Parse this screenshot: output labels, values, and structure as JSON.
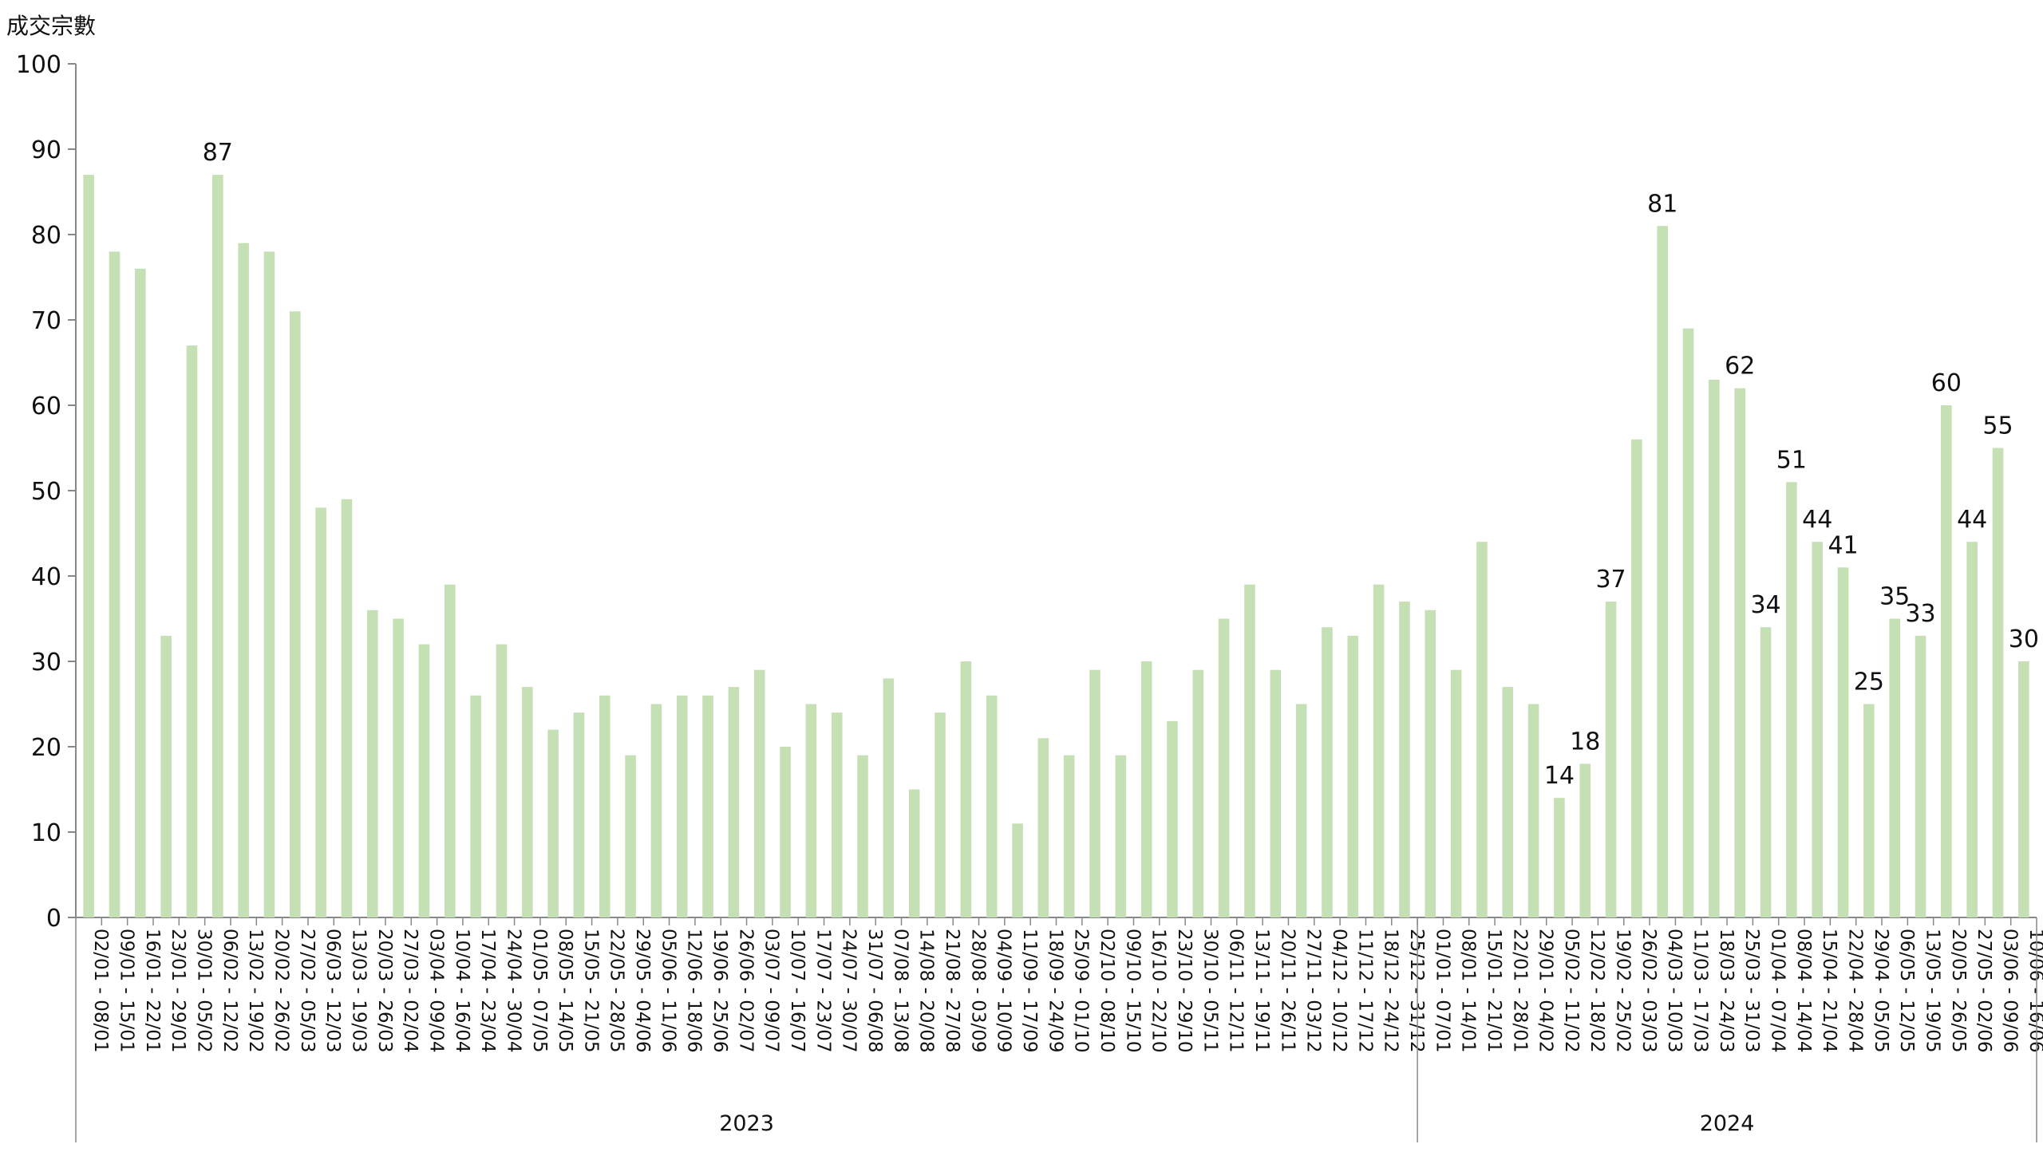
{
  "chart_data": {
    "type": "bar",
    "ylabel": "成交宗數",
    "ylim": [
      0,
      100
    ],
    "yticks": [
      0,
      10,
      20,
      30,
      40,
      50,
      60,
      70,
      80,
      90,
      100
    ],
    "bar_color": "#c5e0b4",
    "axis_color": "#888888",
    "categories": [
      "02/01 - 08/01",
      "09/01 - 15/01",
      "16/01 - 22/01",
      "23/01 - 29/01",
      "30/01 - 05/02",
      "06/02 - 12/02",
      "13/02 - 19/02",
      "20/02 - 26/02",
      "27/02 - 05/03",
      "06/03 - 12/03",
      "13/03 - 19/03",
      "20/03 - 26/03",
      "27/03 - 02/04",
      "03/04 - 09/04",
      "10/04 - 16/04",
      "17/04 - 23/04",
      "24/04 - 30/04",
      "01/05 - 07/05",
      "08/05 - 14/05",
      "15/05 - 21/05",
      "22/05 - 28/05",
      "29/05 - 04/06",
      "05/06 - 11/06",
      "12/06 - 18/06",
      "19/06 - 25/06",
      "26/06 - 02/07",
      "03/07 - 09/07",
      "10/07 - 16/07",
      "17/07 - 23/07",
      "24/07 - 30/07",
      "31/07 - 06/08",
      "07/08 - 13/08",
      "14/08 - 20/08",
      "21/08 - 27/08",
      "28/08 - 03/09",
      "04/09 - 10/09",
      "11/09 - 17/09",
      "18/09 - 24/09",
      "25/09 - 01/10",
      "02/10 - 08/10",
      "09/10 - 15/10",
      "16/10 - 22/10",
      "23/10 - 29/10",
      "30/10 - 05/11",
      "06/11 - 12/11",
      "13/11 - 19/11",
      "20/11 - 26/11",
      "27/11 - 03/12",
      "04/12 - 10/12",
      "11/12 - 17/12",
      "18/12 - 24/12",
      "25/12 - 31/12",
      "01/01 - 07/01",
      "08/01 - 14/01",
      "15/01 - 21/01",
      "22/01 - 28/01",
      "29/01 - 04/02",
      "05/02 - 11/02",
      "12/02 - 18/02",
      "19/02 - 25/02",
      "26/02 - 03/03",
      "04/03 - 10/03",
      "11/03 - 17/03",
      "18/03 - 24/03",
      "25/03 - 31/03",
      "01/04 - 07/04",
      "08/04 - 14/04",
      "15/04 - 21/04",
      "22/04 - 28/04",
      "29/04 - 05/05",
      "06/05 - 12/05",
      "13/05 - 19/05",
      "20/05 - 26/05",
      "27/05 - 02/06",
      "03/06 - 09/06",
      "10/06 - 16/06"
    ],
    "values": [
      87,
      78,
      76,
      33,
      67,
      87,
      79,
      78,
      71,
      48,
      49,
      36,
      35,
      32,
      39,
      26,
      32,
      27,
      22,
      24,
      26,
      19,
      25,
      26,
      26,
      27,
      29,
      20,
      25,
      24,
      19,
      28,
      15,
      24,
      30,
      26,
      11,
      21,
      19,
      29,
      19,
      30,
      23,
      29,
      35,
      39,
      29,
      25,
      34,
      33,
      39,
      37,
      36,
      29,
      44,
      27,
      25,
      14,
      18,
      37,
      56,
      81,
      69,
      63,
      62,
      34,
      51,
      44,
      41,
      25,
      35,
      33,
      60,
      44,
      55,
      30
    ],
    "data_labels": [
      {
        "index": 5,
        "text": "87"
      },
      {
        "index": 57,
        "text": "14"
      },
      {
        "index": 58,
        "text": "18"
      },
      {
        "index": 59,
        "text": "37"
      },
      {
        "index": 61,
        "text": "81"
      },
      {
        "index": 64,
        "text": "62"
      },
      {
        "index": 65,
        "text": "34"
      },
      {
        "index": 66,
        "text": "51"
      },
      {
        "index": 67,
        "text": "44"
      },
      {
        "index": 68,
        "text": "41"
      },
      {
        "index": 69,
        "text": "25"
      },
      {
        "index": 70,
        "text": "35"
      },
      {
        "index": 71,
        "text": "33"
      },
      {
        "index": 72,
        "text": "60"
      },
      {
        "index": 73,
        "text": "44"
      },
      {
        "index": 74,
        "text": "55"
      },
      {
        "index": 75,
        "text": "30"
      }
    ],
    "groups": [
      {
        "label": "2023",
        "start": 0,
        "end": 51
      },
      {
        "label": "2024",
        "start": 52,
        "end": 75
      }
    ]
  }
}
